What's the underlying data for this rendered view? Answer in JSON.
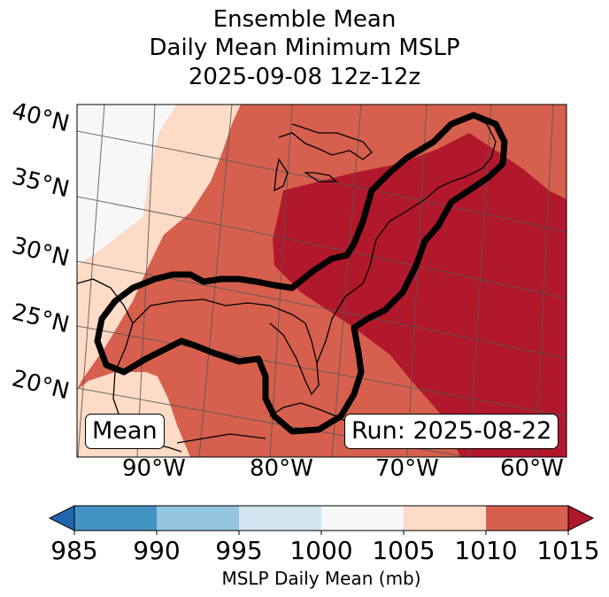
{
  "title": {
    "line1": "Ensemble Mean",
    "line2": "Daily Mean Minimum MSLP",
    "line3": "2025-09-08 12z-12z"
  },
  "map": {
    "mean_label": "Mean",
    "run_label": "Run: 2025-08-22",
    "lat_labels": [
      "40°N",
      "35°N",
      "30°N",
      "25°N",
      "20°N"
    ],
    "lon_labels": [
      "90°W",
      "80°W",
      "70°W",
      "60°W"
    ],
    "field_description_levels": [
      1000,
      1005,
      1010,
      1015
    ]
  },
  "colorbar": {
    "label": "MSLP Daily Mean (mb)",
    "ticks": [
      "985",
      "990",
      "995",
      "1000",
      "1005",
      "1010",
      "1015"
    ],
    "colors": [
      "#2166ac",
      "#4393c3",
      "#92c5de",
      "#d1e5f0",
      "#f7f7f7",
      "#fddbc7",
      "#d6604d",
      "#b2182b"
    ]
  }
}
